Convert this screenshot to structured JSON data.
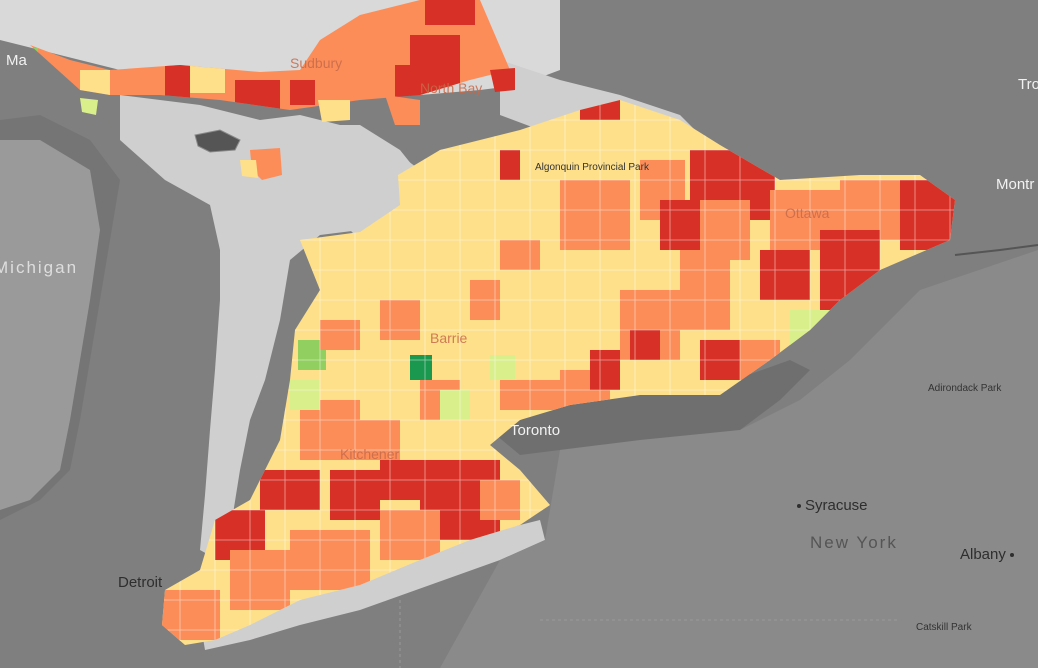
{
  "map": {
    "colors": {
      "water": "#cfcfcf",
      "land_dark": "#7d7d7d",
      "land_light": "#a6a6a6",
      "land_pale": "#dcdcdc",
      "boundary": "#ffffff",
      "scale": [
        "#1a9850",
        "#91cf60",
        "#d9ef8b",
        "#fee08b",
        "#fc8d59",
        "#d73027"
      ]
    },
    "labels": {
      "sudbury": "Sudbury",
      "north_bay": "North Bay",
      "algonquin": "Algonquin Provincial Park",
      "ottawa": "Ottawa",
      "montreal": "Montr",
      "trois": "Tro",
      "michigan": "Michigan",
      "barrie": "Barrie",
      "toronto": "Toronto",
      "kitchener": "Kitchener",
      "adirondack": "Adirondack Park",
      "syracuse": "Syracuse",
      "new_york": "New York",
      "albany": "Albany",
      "detroit": "Detroit",
      "catskill": "Catskill Park",
      "marie": "Ma"
    }
  }
}
